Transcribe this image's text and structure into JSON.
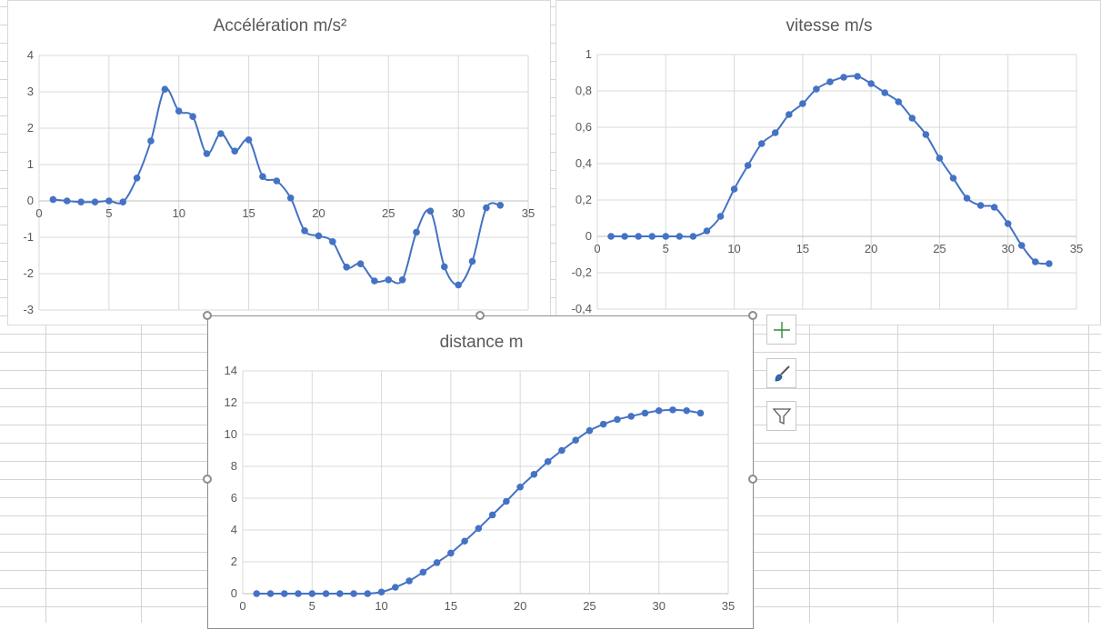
{
  "sheet": {
    "gridline_color": "#d4d4d4"
  },
  "side_buttons": [
    {
      "name": "chart-elements-button",
      "icon": "plus-icon",
      "color": "#2e8b3c"
    },
    {
      "name": "chart-styles-button",
      "icon": "paintbrush-icon",
      "color": "#2b6cb0"
    },
    {
      "name": "chart-filters-button",
      "icon": "funnel-icon",
      "color": "#595959"
    }
  ],
  "chart_data": [
    {
      "id": "acceleration",
      "type": "line",
      "title": "Accélération m/s²",
      "smooth": true,
      "marker": "circle",
      "color": "#4472c4",
      "grid": true,
      "xlim": [
        0,
        35
      ],
      "ylim": [
        -3,
        4
      ],
      "x_ticks": [
        0,
        5,
        10,
        15,
        20,
        25,
        30,
        35
      ],
      "y_ticks": [
        -3,
        -2,
        -1,
        0,
        1,
        2,
        3,
        4
      ],
      "x": [
        1,
        2,
        3,
        4,
        5,
        6,
        7,
        8,
        9,
        10,
        11,
        12,
        13,
        14,
        15,
        16,
        17,
        18,
        19,
        20,
        21,
        22,
        23,
        24,
        25,
        26,
        27,
        28,
        29,
        30,
        31,
        32,
        33
      ],
      "y": [
        0.04,
        0.0,
        -0.03,
        -0.03,
        0.0,
        -0.03,
        0.63,
        1.65,
        3.07,
        2.47,
        2.32,
        1.3,
        1.85,
        1.37,
        1.68,
        0.67,
        0.55,
        0.08,
        -0.82,
        -0.96,
        -1.12,
        -1.82,
        -1.73,
        -2.2,
        -2.17,
        -2.17,
        -0.86,
        -0.28,
        -1.81,
        -2.31,
        -1.66,
        -0.19,
        -0.12
      ]
    },
    {
      "id": "vitesse",
      "type": "line",
      "title": "vitesse m/s",
      "smooth": true,
      "marker": "circle",
      "color": "#4472c4",
      "grid": true,
      "xlim": [
        0,
        35
      ],
      "ylim": [
        -0.4,
        1
      ],
      "x_ticks": [
        0,
        5,
        10,
        15,
        20,
        25,
        30,
        35
      ],
      "y_ticks": [
        "-0,4",
        "-0,2",
        "0",
        "0,2",
        "0,4",
        "0,6",
        "0,8",
        "1"
      ],
      "y_tick_values": [
        -0.4,
        -0.2,
        0,
        0.2,
        0.4,
        0.6,
        0.8,
        1
      ],
      "x": [
        1,
        2,
        3,
        4,
        5,
        6,
        7,
        8,
        9,
        10,
        11,
        12,
        13,
        14,
        15,
        16,
        17,
        18,
        19,
        20,
        21,
        22,
        23,
        24,
        25,
        26,
        27,
        28,
        29,
        30,
        31,
        32,
        33
      ],
      "y": [
        0,
        0,
        0,
        0,
        0,
        0,
        0,
        0.03,
        0.11,
        0.26,
        0.39,
        0.51,
        0.57,
        0.67,
        0.73,
        0.81,
        0.85,
        0.875,
        0.88,
        0.84,
        0.79,
        0.74,
        0.65,
        0.56,
        0.43,
        0.32,
        0.21,
        0.17,
        0.16,
        0.07,
        -0.05,
        -0.14,
        -0.15
      ]
    },
    {
      "id": "distance",
      "type": "line",
      "title": "distance   m",
      "smooth": true,
      "marker": "circle",
      "color": "#4472c4",
      "grid": true,
      "xlim": [
        0,
        35
      ],
      "ylim": [
        0,
        14
      ],
      "x_ticks": [
        0,
        5,
        10,
        15,
        20,
        25,
        30,
        35
      ],
      "y_ticks": [
        0,
        2,
        4,
        6,
        8,
        10,
        12,
        14
      ],
      "x": [
        1,
        2,
        3,
        4,
        5,
        6,
        7,
        8,
        9,
        10,
        11,
        12,
        13,
        14,
        15,
        16,
        17,
        18,
        19,
        20,
        21,
        22,
        23,
        24,
        25,
        26,
        27,
        28,
        29,
        30,
        31,
        32,
        33
      ],
      "y": [
        0,
        0,
        0,
        0,
        0,
        0,
        0,
        0,
        0,
        0.1,
        0.4,
        0.8,
        1.35,
        1.95,
        2.55,
        3.3,
        4.1,
        4.95,
        5.8,
        6.7,
        7.5,
        8.3,
        9.0,
        9.65,
        10.25,
        10.65,
        10.95,
        11.15,
        11.35,
        11.5,
        11.55,
        11.5,
        11.35
      ]
    }
  ]
}
